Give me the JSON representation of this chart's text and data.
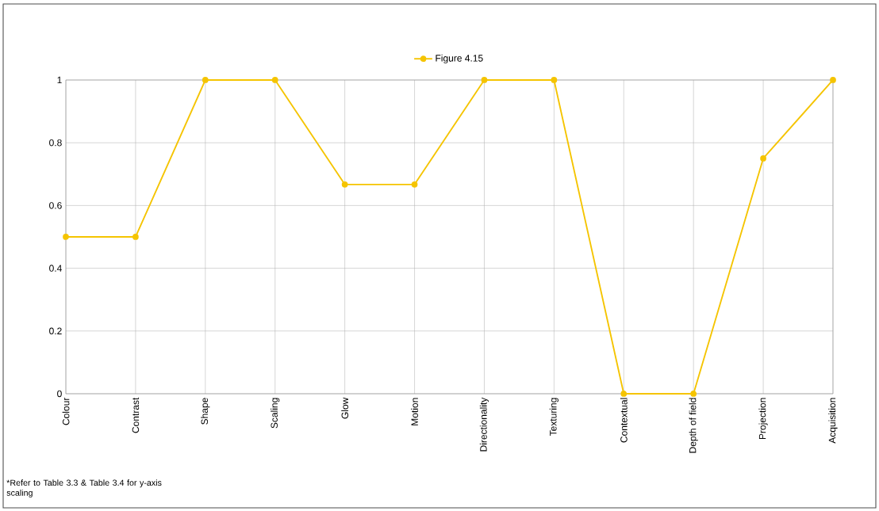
{
  "chart_data": {
    "type": "line",
    "categories": [
      "Colour",
      "Contrast",
      "Shape",
      "Scaling",
      "Glow",
      "Motion",
      "Directionality",
      "Texturing",
      "Contextual",
      "Depth of field",
      "Projection",
      "Acquisition"
    ],
    "series": [
      {
        "name": "Figure 4.15",
        "color": "#f5c400",
        "values": [
          0.5,
          0.5,
          1,
          1,
          0.667,
          0.667,
          1,
          1,
          0,
          0,
          0.75,
          1
        ]
      }
    ],
    "ylim": [
      0,
      1
    ],
    "yticks": [
      0,
      0.2,
      0.4,
      0.6,
      0.8,
      1
    ],
    "grid": true,
    "legend": "top",
    "marker": "circle",
    "line_style": "solid",
    "annotations": [
      "*Refer to Table 3.3 & Table 3.4 for y-axis scaling"
    ]
  }
}
